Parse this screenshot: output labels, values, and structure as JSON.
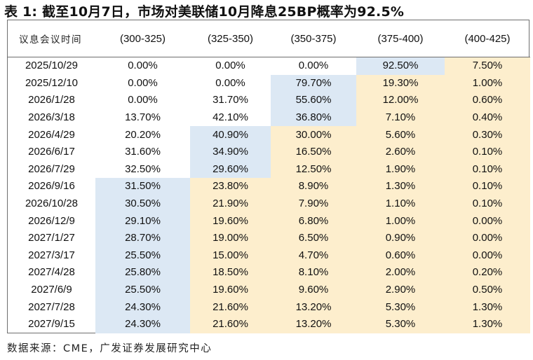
{
  "title": "表 1:  截至10月7日，市场对美联储10月降息25BP概率为92.5%",
  "source": "数据来源：CME，广发证券发展研究中心",
  "colors": {
    "highlight_blue": "#dce8f4",
    "highlight_yellow": "#fdeecd",
    "border": "#6e6e6e"
  },
  "table": {
    "headers": [
      "议息会议时间",
      "(300-325)",
      "(325-350)",
      "(350-375)",
      "(375-400)",
      "(400-425)"
    ],
    "rows": [
      {
        "date": "2025/10/29",
        "values": [
          "0.00%",
          "0.00%",
          "0.00%",
          "92.50%",
          "7.50%"
        ],
        "blue_col": 4
      },
      {
        "date": "2025/12/10",
        "values": [
          "0.00%",
          "0.00%",
          "79.70%",
          "19.30%",
          "1.00%"
        ],
        "blue_col": 3
      },
      {
        "date": "2026/1/28",
        "values": [
          "0.00%",
          "31.70%",
          "55.60%",
          "12.00%",
          "0.60%"
        ],
        "blue_col": 3
      },
      {
        "date": "2026/3/18",
        "values": [
          "13.70%",
          "42.10%",
          "36.80%",
          "7.10%",
          "0.40%"
        ],
        "blue_col": 3
      },
      {
        "date": "2026/4/29",
        "values": [
          "20.20%",
          "40.90%",
          "30.00%",
          "5.60%",
          "0.30%"
        ],
        "blue_col": 2
      },
      {
        "date": "2026/6/17",
        "values": [
          "31.60%",
          "34.90%",
          "16.50%",
          "2.60%",
          "0.10%"
        ],
        "blue_col": 2
      },
      {
        "date": "2026/7/29",
        "values": [
          "32.50%",
          "29.60%",
          "12.50%",
          "1.90%",
          "0.10%"
        ],
        "blue_col": 2
      },
      {
        "date": "2026/9/16",
        "values": [
          "31.50%",
          "23.80%",
          "8.90%",
          "1.30%",
          "0.10%"
        ],
        "blue_col": 1
      },
      {
        "date": "2026/10/28",
        "values": [
          "30.50%",
          "21.90%",
          "7.90%",
          "1.10%",
          "0.10%"
        ],
        "blue_col": 1
      },
      {
        "date": "2026/12/9",
        "values": [
          "29.10%",
          "19.60%",
          "6.80%",
          "1.00%",
          "0.00%"
        ],
        "blue_col": 1
      },
      {
        "date": "2027/1/27",
        "values": [
          "28.70%",
          "19.00%",
          "6.50%",
          "0.90%",
          "0.00%"
        ],
        "blue_col": 1
      },
      {
        "date": "2027/3/17",
        "values": [
          "25.50%",
          "15.00%",
          "4.70%",
          "0.60%",
          "0.00%"
        ],
        "blue_col": 1
      },
      {
        "date": "2027/4/28",
        "values": [
          "25.80%",
          "18.50%",
          "8.10%",
          "2.00%",
          "0.20%"
        ],
        "blue_col": 1
      },
      {
        "date": "2027/6/9",
        "values": [
          "25.50%",
          "19.60%",
          "9.60%",
          "2.90%",
          "0.50%"
        ],
        "blue_col": 1
      },
      {
        "date": "2027/7/28",
        "values": [
          "24.30%",
          "21.60%",
          "13.20%",
          "5.30%",
          "1.30%"
        ],
        "blue_col": 1
      },
      {
        "date": "2027/9/15",
        "values": [
          "24.30%",
          "21.60%",
          "13.20%",
          "5.30%",
          "1.30%"
        ],
        "blue_col": 1
      }
    ]
  }
}
